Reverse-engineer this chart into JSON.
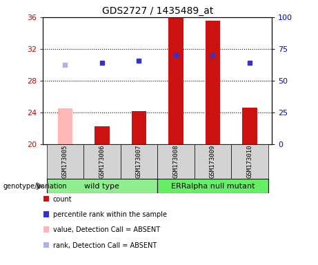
{
  "title": "GDS2727 / 1435489_at",
  "samples": [
    "GSM173005",
    "GSM173006",
    "GSM173007",
    "GSM173008",
    "GSM173009",
    "GSM173010"
  ],
  "group_labels": [
    "wild type",
    "ERRalpha null mutant"
  ],
  "ylim_left": [
    20,
    36
  ],
  "ylim_right": [
    0,
    100
  ],
  "yticks_left": [
    20,
    24,
    28,
    32,
    36
  ],
  "yticks_right": [
    0,
    25,
    50,
    75,
    100
  ],
  "bar_values": [
    24.5,
    22.3,
    24.2,
    35.9,
    35.6,
    24.6
  ],
  "bar_colors": [
    "#ffb6b6",
    "#cc1111",
    "#cc1111",
    "#cc1111",
    "#cc1111",
    "#cc1111"
  ],
  "rank_values": [
    30.0,
    30.3,
    30.5,
    31.2,
    31.2,
    30.3
  ],
  "rank_colors": [
    "#b0b0ee",
    "#3333cc",
    "#3333cc",
    "#3333cc",
    "#3333cc",
    "#3333cc"
  ],
  "bar_width": 0.4,
  "left_axis_color": "#cc0000",
  "right_axis_color": "#0000cc",
  "x_positions": [
    0,
    1,
    2,
    3,
    4,
    5
  ],
  "label_genotype": "genotype/variation",
  "legend_items": [
    {
      "label": "count",
      "color": "#cc1111"
    },
    {
      "label": "percentile rank within the sample",
      "color": "#3333cc"
    },
    {
      "label": "value, Detection Call = ABSENT",
      "color": "#ffb6b6"
    },
    {
      "label": "rank, Detection Call = ABSENT",
      "color": "#b0b0ee"
    }
  ],
  "wt_color": "#90ee90",
  "err_color": "#66ee66",
  "sample_bg": "#d3d3d3"
}
